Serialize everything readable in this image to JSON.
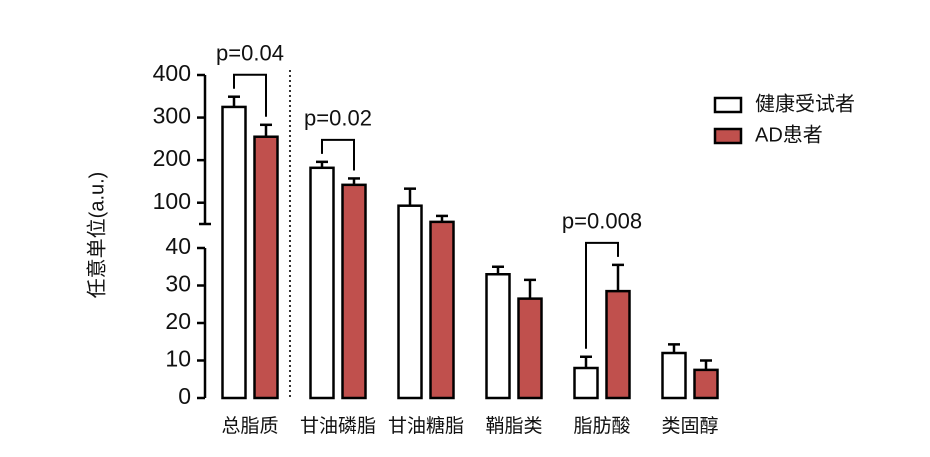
{
  "chart_data": {
    "type": "bar",
    "ylabel": "任意单位(a.u.)",
    "categories": [
      "总脂质",
      "甘油磷脂",
      "甘油糖脂",
      "鞘脂类",
      "脂肪酸",
      "类固醇"
    ],
    "series": [
      {
        "name": "健康受试者",
        "color": "#ffffff",
        "values": [
          325,
          182,
          93,
          33,
          8,
          12
        ],
        "errors": [
          24,
          14,
          40,
          2,
          3,
          2.3
        ]
      },
      {
        "name": "AD患者",
        "color": "#c0504d",
        "values": [
          255,
          142,
          55,
          26.5,
          28.5,
          7.5
        ],
        "errors": [
          28,
          15,
          14,
          5,
          7,
          2.5
        ]
      }
    ],
    "axis_segments": [
      {
        "ylim": [
          0,
          40
        ],
        "yticks": [
          0,
          10,
          20,
          30,
          40
        ]
      },
      {
        "ylim": [
          50,
          400
        ],
        "yticks": [
          100,
          200,
          300,
          400
        ]
      }
    ],
    "annotations": [
      {
        "text": "p=0.04",
        "category": 0
      },
      {
        "text": "p=0.02",
        "category": 1
      },
      {
        "text": "p=0.008",
        "category": 4
      }
    ],
    "legend": "top-right"
  }
}
